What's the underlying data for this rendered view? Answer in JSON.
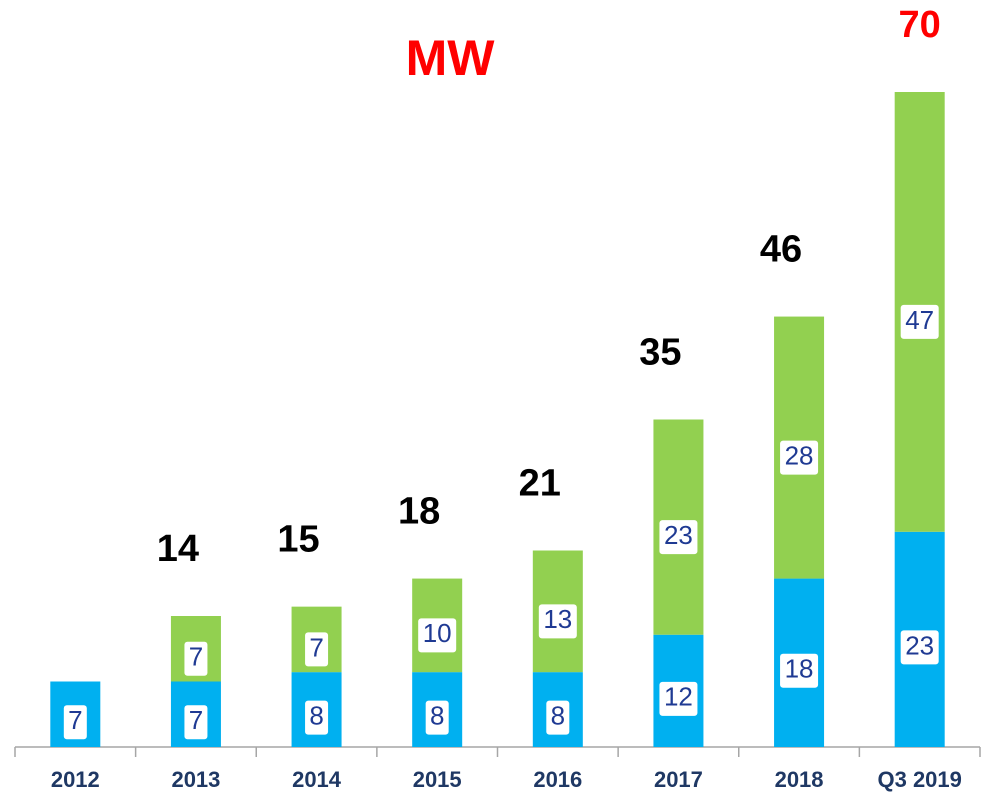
{
  "chart_data": {
    "type": "stacked_bar",
    "title": "MW",
    "categories": [
      "2012",
      "2013",
      "2014",
      "2015",
      "2016",
      "2017",
      "2018",
      "Q3 2019"
    ],
    "series": [
      {
        "color": "#00b0f0",
        "values": [
          7,
          7,
          8,
          8,
          8,
          12,
          18,
          23
        ]
      },
      {
        "color": "#92d050",
        "values": [
          null,
          7,
          7,
          10,
          13,
          23,
          28,
          47
        ]
      }
    ],
    "totals": [
      null,
      14,
      15,
      18,
      21,
      35,
      46,
      70
    ],
    "ylim": [
      0,
      70
    ],
    "totals_color": "#000000",
    "highlight_color": "#ff0000",
    "value_label_color": "#1f3a93"
  }
}
